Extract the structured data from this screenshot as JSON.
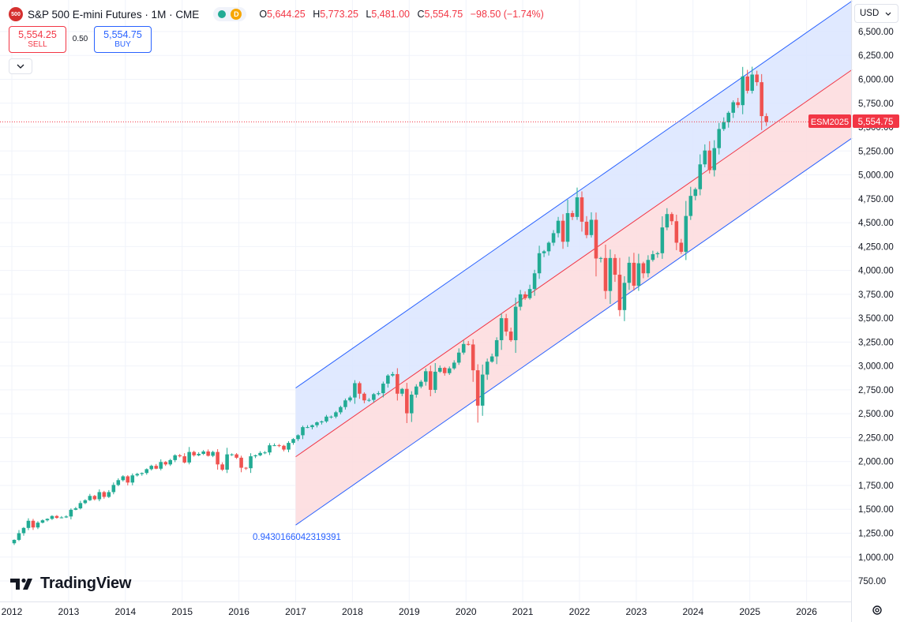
{
  "header": {
    "symbol_badge": "500",
    "title": "S&P 500 E-mini Futures · 1M · CME",
    "delay_badge": "D",
    "ohlc": [
      {
        "k": "O",
        "v": "5,644.25"
      },
      {
        "k": "H",
        "v": "5,773.25"
      },
      {
        "k": "L",
        "v": "5,481.00"
      },
      {
        "k": "C",
        "v": "5,554.75"
      }
    ],
    "change": "−98.50 (−1.74%)"
  },
  "trade": {
    "sell_price": "5,554.25",
    "sell_label": "SELL",
    "spread": "0.50",
    "buy_price": "5,554.75",
    "buy_label": "BUY"
  },
  "currency": "USD",
  "logo_text": "TradingView",
  "price_tag": {
    "symbol": "ESM2025",
    "value": "5,554.75"
  },
  "channel_label": "0.9430166042319391",
  "icons": [
    "chevron-down-icon",
    "settings-icon",
    "tradingview-logo-icon"
  ],
  "colors": {
    "up": "#22ab94",
    "down": "#ef5350",
    "channel_line": "#2962ff",
    "midline": "#f23645",
    "upper_fill": "#dbe5ff",
    "lower_fill": "#fddbdd",
    "last_price": "#f23645"
  },
  "chart_data": {
    "type": "candlestick",
    "timeframe": "1M",
    "ylim": [
      625,
      6650
    ],
    "y_ticks": [
      750,
      1000,
      1250,
      1500,
      1750,
      2000,
      2250,
      2500,
      2750,
      3000,
      3250,
      3500,
      3750,
      4000,
      4250,
      4500,
      4750,
      5000,
      5250,
      5500,
      5750,
      6000,
      6250,
      6500
    ],
    "y_tick_labels": [
      "750.00",
      "1,000.00",
      "1,250.00",
      "1,500.00",
      "1,750.00",
      "2,000.00",
      "2,250.00",
      "2,500.00",
      "2,750.00",
      "3,000.00",
      "3,250.00",
      "3,500.00",
      "3,750.00",
      "4,000.00",
      "4,250.00",
      "4,500.00",
      "4,750.00",
      "5,000.00",
      "5,250.00",
      "5,500.00",
      "5,750.00",
      "6,000.00",
      "6,250.00",
      "6,500.00"
    ],
    "x_ticks": [
      2012,
      2013,
      2014,
      2015,
      2016,
      2017,
      2018,
      2019,
      2020,
      2021,
      2022,
      2023,
      2024,
      2025,
      2026
    ],
    "last_price": 5554.75,
    "channel": {
      "start": [
        2017.0,
        2050
      ],
      "end": [
        2026.8,
        6100
      ],
      "upper_offset": 720,
      "lower_offset": -715
    },
    "monthly_closes": [
      1180,
      1250,
      1305,
      1380,
      1310,
      1360,
      1385,
      1400,
      1430,
      1410,
      1415,
      1425,
      1495,
      1510,
      1565,
      1595,
      1640,
      1605,
      1680,
      1630,
      1680,
      1755,
      1805,
      1845,
      1780,
      1855,
      1870,
      1880,
      1920,
      1955,
      1925,
      1995,
      1970,
      2015,
      2065,
      2055,
      1990,
      2100,
      2065,
      2080,
      2105,
      2060,
      2100,
      1970,
      1915,
      2075,
      2075,
      2040,
      1935,
      1930,
      2055,
      2065,
      2090,
      2095,
      2170,
      2170,
      2165,
      2125,
      2195,
      2235,
      2275,
      2360,
      2360,
      2380,
      2410,
      2420,
      2470,
      2470,
      2515,
      2570,
      2640,
      2670,
      2820,
      2710,
      2640,
      2645,
      2705,
      2715,
      2815,
      2900,
      2915,
      2710,
      2760,
      2505,
      2700,
      2785,
      2835,
      2945,
      2750,
      2940,
      2980,
      2925,
      2975,
      3035,
      3140,
      3230,
      3225,
      2955,
      2585,
      2910,
      3045,
      3100,
      3270,
      3500,
      3360,
      3270,
      3620,
      3750,
      3710,
      3805,
      3970,
      4180,
      4200,
      4290,
      4390,
      4520,
      4300,
      4600,
      4560,
      4765,
      4510,
      4370,
      4530,
      4125,
      4130,
      3785,
      4130,
      3955,
      3585,
      3870,
      4080,
      3840,
      4075,
      3970,
      4110,
      4170,
      4180,
      4450,
      4590,
      4515,
      4290,
      4195,
      4570,
      4780,
      4850,
      5110,
      5255,
      5050,
      5280,
      5480,
      5550,
      5650,
      5760,
      5730,
      6030,
      5880,
      6050,
      5970,
      5615,
      5554.75
    ]
  }
}
